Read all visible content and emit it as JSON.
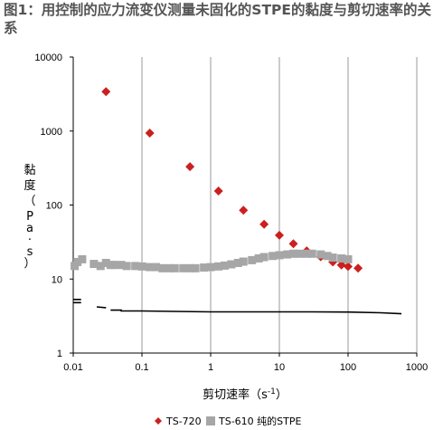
{
  "chart_data": {
    "type": "scatter",
    "title": "图1：用控制的应力流变仪测量未固化的STPE的黏度与剪切速率的关系",
    "xlabel": "剪切速率（s-1）",
    "xlabel_parts": {
      "text": "剪切速率（s",
      "sup": "-1",
      "close": "）"
    },
    "ylabel": "黏度（Pa·s）",
    "ylabel_chars": [
      "黏",
      "度",
      "（",
      "P",
      "a",
      "·",
      "s",
      "）"
    ],
    "x_scale": "log",
    "y_scale": "log",
    "xlim": [
      0.01,
      1000
    ],
    "ylim": [
      1,
      10000
    ],
    "x_ticks": [
      {
        "value": 0.01,
        "label": "0.01"
      },
      {
        "value": 0.1,
        "label": "0.1"
      },
      {
        "value": 1,
        "label": "1"
      },
      {
        "value": 10,
        "label": "10"
      },
      {
        "value": 100,
        "label": "100"
      },
      {
        "value": 1000,
        "label": "1000"
      }
    ],
    "y_ticks": [
      {
        "value": 1,
        "label": "1"
      },
      {
        "value": 10,
        "label": "10"
      },
      {
        "value": 100,
        "label": "100"
      },
      {
        "value": 1000,
        "label": "1000"
      },
      {
        "value": 10000,
        "label": "10000"
      }
    ],
    "grid": "vertical",
    "legend_position": "bottom",
    "series": [
      {
        "name": "TS-720",
        "marker": "diamond",
        "color": "#cc1f1f",
        "points": [
          [
            0.03,
            3400
          ],
          [
            0.13,
            940
          ],
          [
            0.5,
            330
          ],
          [
            1.3,
            155
          ],
          [
            3.0,
            85
          ],
          [
            6.0,
            55
          ],
          [
            10,
            39
          ],
          [
            16,
            30
          ],
          [
            25,
            24
          ],
          [
            40,
            20
          ],
          [
            60,
            17
          ],
          [
            80,
            15.5
          ],
          [
            100,
            14.8
          ],
          [
            140,
            14
          ]
        ]
      },
      {
        "name": "TS-610  纯的STPE",
        "marker": "square",
        "color": "#a6a6a6",
        "points": [
          [
            0.0105,
            15
          ],
          [
            0.0115,
            17
          ],
          [
            0.0135,
            18.5
          ],
          [
            0.02,
            16
          ],
          [
            0.025,
            15
          ],
          [
            0.03,
            16.5
          ],
          [
            0.035,
            15.5
          ],
          [
            0.04,
            15.5
          ],
          [
            0.05,
            15.5
          ],
          [
            0.06,
            15
          ],
          [
            0.08,
            15
          ],
          [
            0.1,
            14.8
          ],
          [
            0.13,
            14.5
          ],
          [
            0.16,
            14.5
          ],
          [
            0.2,
            14
          ],
          [
            0.25,
            14
          ],
          [
            0.3,
            14
          ],
          [
            0.4,
            14
          ],
          [
            0.5,
            14
          ],
          [
            0.6,
            14
          ],
          [
            0.8,
            14.3
          ],
          [
            1.0,
            14.5
          ],
          [
            1.3,
            14.8
          ],
          [
            1.6,
            15.2
          ],
          [
            2.0,
            15.8
          ],
          [
            2.5,
            16.5
          ],
          [
            3.0,
            17.2
          ],
          [
            4.0,
            18
          ],
          [
            5.0,
            19
          ],
          [
            6.0,
            19.8
          ],
          [
            8.0,
            20.5
          ],
          [
            10,
            21
          ],
          [
            13,
            21.5
          ],
          [
            16,
            22
          ],
          [
            20,
            22
          ],
          [
            25,
            22
          ],
          [
            30,
            22
          ],
          [
            40,
            21.5
          ],
          [
            50,
            20.5
          ],
          [
            60,
            19.5
          ],
          [
            80,
            19
          ],
          [
            100,
            18.5
          ]
        ]
      },
      {
        "name": "",
        "marker": "line",
        "color": "#000000",
        "points": [
          [
            0.01,
            5.3
          ],
          [
            0.013,
            5.3
          ],
          [
            0.01,
            4.8
          ],
          [
            0.013,
            4.8
          ],
          [
            0.022,
            4.2
          ],
          [
            0.03,
            4.1
          ],
          [
            0.035,
            3.8
          ],
          [
            0.05,
            3.8
          ],
          [
            0.05,
            3.7
          ],
          [
            0.1,
            3.7
          ],
          [
            0.3,
            3.65
          ],
          [
            1,
            3.6
          ],
          [
            3,
            3.6
          ],
          [
            10,
            3.6
          ],
          [
            30,
            3.6
          ],
          [
            100,
            3.58
          ],
          [
            300,
            3.5
          ],
          [
            600,
            3.4
          ]
        ]
      }
    ]
  }
}
